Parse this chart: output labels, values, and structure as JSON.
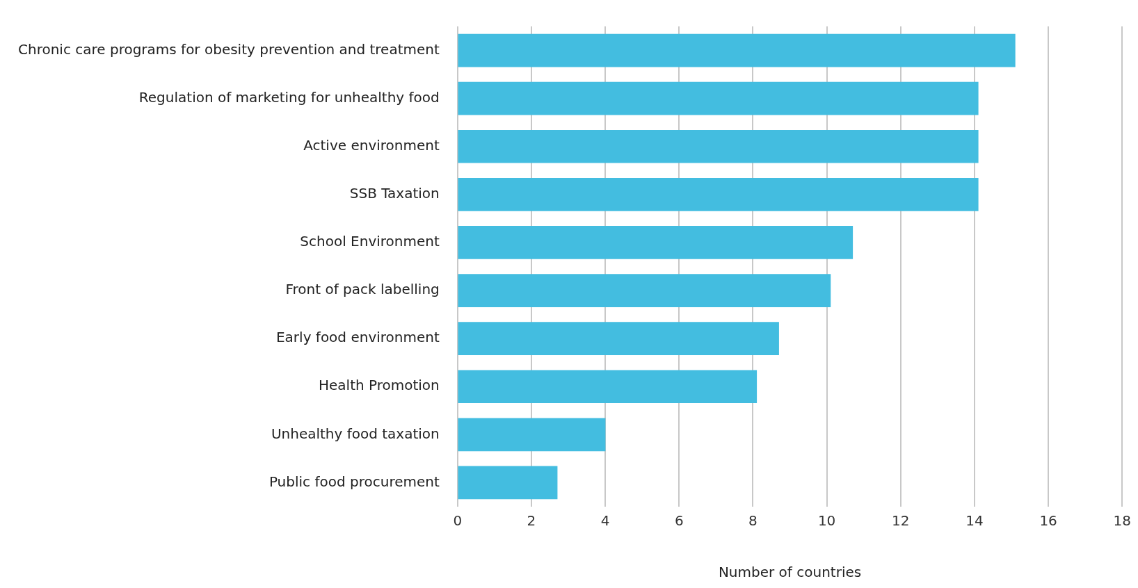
{
  "chart_data": {
    "type": "bar",
    "orientation": "horizontal",
    "xlabel": "Number of countries",
    "categories": [
      "Chronic care programs for obesity prevention and treatment",
      "Regulation of marketing for unhealthy food",
      "Active environment",
      "SSB Taxation",
      "School Environment",
      "Front of pack labelling",
      "Early food environment",
      "Health Promotion",
      "Unhealthy food taxation",
      "Public food procurement"
    ],
    "values": [
      15.1,
      14.1,
      14.1,
      14.1,
      10.7,
      10.1,
      8.7,
      8.1,
      4.0,
      2.7
    ],
    "color": "#43bde0",
    "xlim": [
      0,
      18
    ],
    "xticks": [
      0,
      2,
      4,
      6,
      8,
      10,
      12,
      14,
      16,
      18
    ],
    "grid": "x",
    "legend": false
  }
}
